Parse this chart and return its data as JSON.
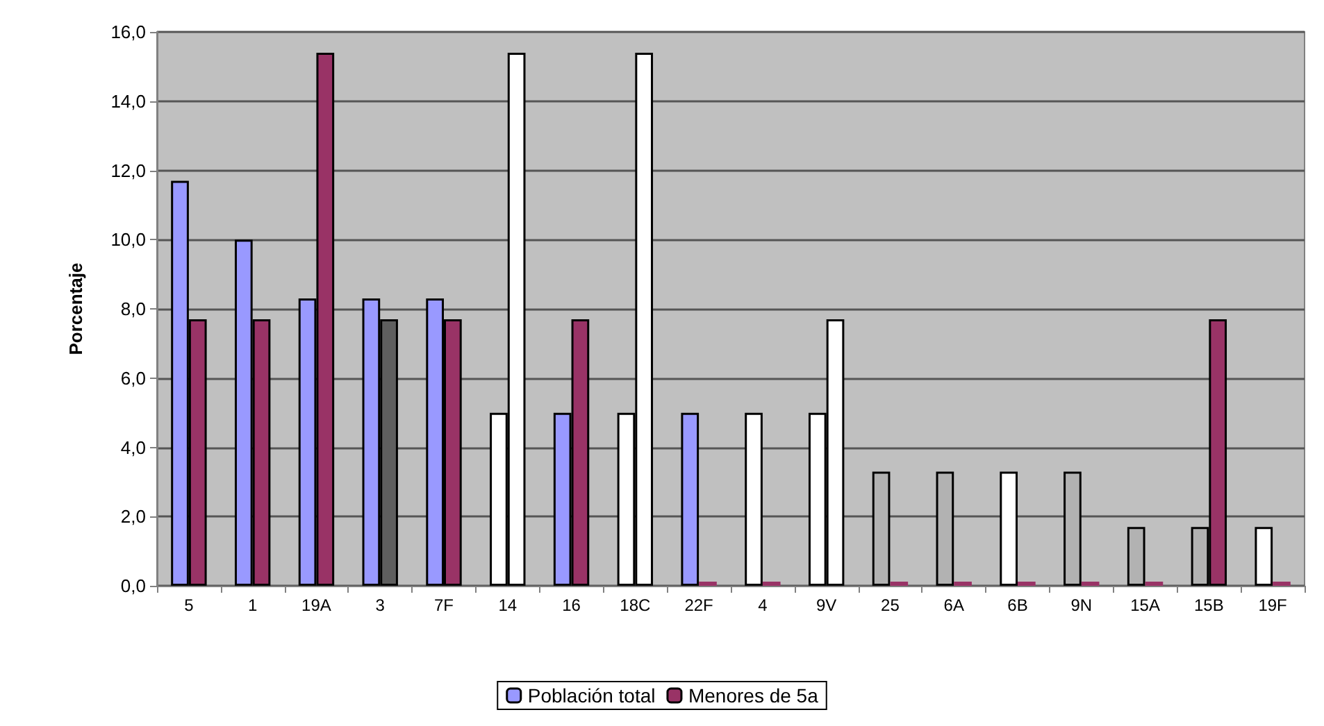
{
  "chart_data": {
    "type": "bar",
    "ylabel": "Porcentaje",
    "categories": [
      "5",
      "1",
      "19A",
      "3",
      "7F",
      "14",
      "16",
      "18C",
      "22F",
      "4",
      "9V",
      "25",
      "6A",
      "6B",
      "9N",
      "15A",
      "15B",
      "19F"
    ],
    "series": [
      {
        "name": "Población total",
        "color": "#9999ff",
        "values": [
          11.7,
          10.0,
          8.3,
          8.3,
          8.3,
          5.0,
          5.0,
          5.0,
          5.0,
          5.0,
          5.0,
          3.3,
          3.3,
          3.3,
          3.3,
          1.7,
          1.7,
          1.7
        ],
        "colors": [
          "#9999ff",
          "#9999ff",
          "#9999ff",
          "#9999ff",
          "#9999ff",
          "#ffffff",
          "#9999ff",
          "#ffffff",
          "#9999ff",
          "#ffffff",
          "#ffffff",
          "#b2b2b2",
          "#b2b2b2",
          "#ffffff",
          "#b2b2b2",
          "#b2b2b2",
          "#b2b2b2",
          "#ffffff"
        ]
      },
      {
        "name": "Menores de 5a",
        "color": "#993366",
        "values": [
          7.7,
          7.7,
          15.4,
          7.7,
          7.7,
          15.4,
          7.7,
          15.4,
          0,
          0,
          7.7,
          0,
          0,
          0,
          0,
          0,
          7.7,
          0
        ],
        "colors": [
          "#993366",
          "#993366",
          "#993366",
          "#5f5f5f",
          "#993366",
          "#ffffff",
          "#993366",
          "#ffffff",
          "#993366",
          "#993366",
          "#ffffff",
          "#993366",
          "#993366",
          "#993366",
          "#993366",
          "#993366",
          "#993366",
          "#993366"
        ]
      }
    ],
    "ylim": [
      0,
      16
    ],
    "yticks": [
      {
        "value": 0,
        "label": "0,0"
      },
      {
        "value": 2,
        "label": "2,0"
      },
      {
        "value": 4,
        "label": "4,0"
      },
      {
        "value": 6,
        "label": "6,0"
      },
      {
        "value": 8,
        "label": "8,0"
      },
      {
        "value": 10,
        "label": "10,0"
      },
      {
        "value": 12,
        "label": "12,0"
      },
      {
        "value": 14,
        "label": "14,0"
      },
      {
        "value": 16,
        "label": "16,0"
      }
    ],
    "grid": "y",
    "legend": "bottom"
  }
}
